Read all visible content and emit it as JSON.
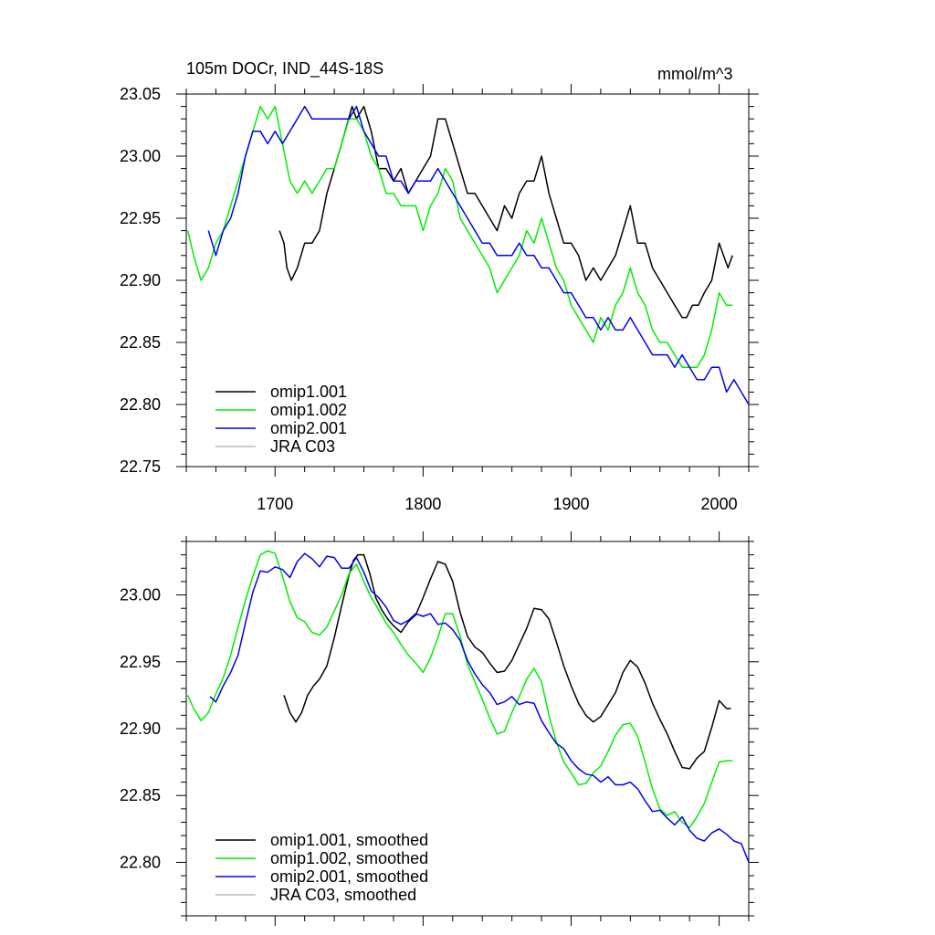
{
  "title_left": "105m DOCr, IND_44S-18S",
  "title_right": "mmol/m^3",
  "colors": {
    "omip1_001": "#000000",
    "omip1_002": "#00ee00",
    "omip2_001": "#0000ee",
    "jra": "#bbbbbb"
  },
  "chart_data": [
    {
      "type": "line",
      "title": "105m DOCr, IND_44S-18S",
      "units": "mmol/m^3",
      "xlim": [
        1640,
        2020
      ],
      "ylim": [
        22.75,
        23.05
      ],
      "x_ticks": [
        1700,
        1800,
        1900,
        2000
      ],
      "x_tick_labels": [
        "1700",
        "1800",
        "1900",
        "2000"
      ],
      "y_ticks": [
        22.75,
        22.8,
        22.85,
        22.9,
        22.95,
        23.0,
        23.05
      ],
      "y_tick_labels": [
        "22.75",
        "22.80",
        "22.85",
        "22.90",
        "22.95",
        "23.00",
        "23.05"
      ],
      "legend_position": "bottom-left",
      "legend": [
        "omip1.001",
        "omip1.002",
        "omip2.001",
        "JRA C03"
      ],
      "series": [
        {
          "name": "omip1.001",
          "color": "#000000",
          "x": [
            1703,
            1706,
            1708,
            1711,
            1715,
            1720,
            1725,
            1730,
            1735,
            1740,
            1745,
            1752,
            1755,
            1760,
            1765,
            1770,
            1775,
            1780,
            1785,
            1790,
            1795,
            1800,
            1805,
            1810,
            1815,
            1820,
            1825,
            1830,
            1835,
            1840,
            1845,
            1850,
            1855,
            1860,
            1865,
            1870,
            1875,
            1880,
            1885,
            1890,
            1895,
            1900,
            1905,
            1910,
            1915,
            1920,
            1925,
            1930,
            1935,
            1940,
            1945,
            1950,
            1955,
            1960,
            1965,
            1970,
            1975,
            1978,
            1982,
            1986,
            1990,
            1995,
            2000,
            2003,
            2006,
            2009
          ],
          "y": [
            22.94,
            22.93,
            22.91,
            22.9,
            22.91,
            22.93,
            22.93,
            22.94,
            22.97,
            22.99,
            23.01,
            23.04,
            23.03,
            23.04,
            23.02,
            22.99,
            22.99,
            22.98,
            22.99,
            22.97,
            22.98,
            22.99,
            23.0,
            23.03,
            23.03,
            23.01,
            22.99,
            22.97,
            22.97,
            22.96,
            22.95,
            22.94,
            22.96,
            22.95,
            22.97,
            22.98,
            22.98,
            23.0,
            22.97,
            22.95,
            22.93,
            22.93,
            22.92,
            22.9,
            22.91,
            22.9,
            22.91,
            22.92,
            22.94,
            22.96,
            22.93,
            22.93,
            22.91,
            22.9,
            22.89,
            22.88,
            22.87,
            22.87,
            22.88,
            22.88,
            22.89,
            22.9,
            22.93,
            22.92,
            22.91,
            22.92
          ]
        },
        {
          "name": "omip1.002",
          "color": "#00ee00",
          "x": [
            1641,
            1645,
            1650,
            1655,
            1660,
            1665,
            1670,
            1675,
            1680,
            1685,
            1690,
            1695,
            1700,
            1705,
            1710,
            1715,
            1720,
            1725,
            1730,
            1735,
            1740,
            1745,
            1750,
            1755,
            1760,
            1765,
            1770,
            1775,
            1780,
            1785,
            1790,
            1795,
            1800,
            1805,
            1810,
            1815,
            1820,
            1825,
            1830,
            1835,
            1840,
            1845,
            1850,
            1855,
            1860,
            1865,
            1870,
            1875,
            1880,
            1885,
            1890,
            1895,
            1900,
            1905,
            1910,
            1915,
            1920,
            1925,
            1930,
            1935,
            1940,
            1945,
            1950,
            1955,
            1960,
            1965,
            1970,
            1975,
            1980,
            1985,
            1990,
            1995,
            2000,
            2005,
            2009
          ],
          "y": [
            22.94,
            22.92,
            22.9,
            22.91,
            22.93,
            22.94,
            22.96,
            22.98,
            23.0,
            23.02,
            23.04,
            23.03,
            23.04,
            23.01,
            22.98,
            22.97,
            22.98,
            22.97,
            22.98,
            22.99,
            22.99,
            23.01,
            23.03,
            23.03,
            23.02,
            23.0,
            22.99,
            22.97,
            22.97,
            22.96,
            22.96,
            22.96,
            22.94,
            22.96,
            22.97,
            22.99,
            22.98,
            22.95,
            22.94,
            22.93,
            22.92,
            22.91,
            22.89,
            22.9,
            22.91,
            22.92,
            22.94,
            22.93,
            22.95,
            22.93,
            22.91,
            22.9,
            22.88,
            22.87,
            22.86,
            22.85,
            22.87,
            22.86,
            22.88,
            22.89,
            22.91,
            22.89,
            22.88,
            22.86,
            22.85,
            22.85,
            22.84,
            22.83,
            22.83,
            22.83,
            22.84,
            22.86,
            22.89,
            22.88,
            22.88
          ]
        },
        {
          "name": "omip2.001",
          "color": "#0000ee",
          "x": [
            1655,
            1660,
            1665,
            1670,
            1675,
            1680,
            1685,
            1690,
            1695,
            1700,
            1705,
            1710,
            1715,
            1720,
            1725,
            1730,
            1735,
            1740,
            1745,
            1750,
            1755,
            1760,
            1765,
            1770,
            1775,
            1780,
            1785,
            1790,
            1795,
            1800,
            1805,
            1810,
            1815,
            1820,
            1825,
            1830,
            1835,
            1840,
            1845,
            1850,
            1855,
            1860,
            1865,
            1870,
            1875,
            1880,
            1885,
            1890,
            1895,
            1900,
            1905,
            1910,
            1915,
            1920,
            1925,
            1930,
            1935,
            1940,
            1945,
            1950,
            1955,
            1960,
            1965,
            1970,
            1975,
            1980,
            1985,
            1990,
            1995,
            2000,
            2005,
            2010,
            2015,
            2020
          ],
          "y": [
            22.94,
            22.92,
            22.94,
            22.95,
            22.97,
            23.0,
            23.02,
            23.02,
            23.01,
            23.02,
            23.01,
            23.02,
            23.03,
            23.04,
            23.03,
            23.03,
            23.03,
            23.03,
            23.03,
            23.03,
            23.04,
            23.02,
            23.01,
            23.0,
            23.0,
            22.98,
            22.98,
            22.97,
            22.98,
            22.98,
            22.98,
            22.99,
            22.98,
            22.97,
            22.96,
            22.95,
            22.94,
            22.93,
            22.93,
            22.92,
            22.92,
            22.92,
            22.93,
            22.92,
            22.92,
            22.91,
            22.91,
            22.9,
            22.89,
            22.89,
            22.88,
            22.87,
            22.87,
            22.86,
            22.87,
            22.86,
            22.86,
            22.87,
            22.86,
            22.85,
            22.84,
            22.84,
            22.84,
            22.83,
            22.84,
            22.83,
            22.82,
            22.82,
            22.83,
            22.83,
            22.81,
            22.82,
            22.81,
            22.8
          ]
        }
      ]
    },
    {
      "type": "line",
      "xlim": [
        1640,
        2020
      ],
      "ylim": [
        22.76,
        23.04
      ],
      "x_ticks": [
        1700,
        1800,
        1900,
        2000
      ],
      "y_ticks": [
        22.8,
        22.85,
        22.9,
        22.95,
        23.0
      ],
      "y_tick_labels": [
        "22.80",
        "22.85",
        "22.90",
        "22.95",
        "23.00"
      ],
      "legend_position": "bottom-left",
      "legend": [
        "omip1.001, smoothed",
        "omip1.002, smoothed",
        "omip2.001, smoothed",
        "JRA C03, smoothed"
      ],
      "series": [
        {
          "name": "omip1.001, smoothed",
          "color": "#000000",
          "x": [
            1706,
            1710,
            1714,
            1718,
            1722,
            1726,
            1730,
            1735,
            1740,
            1745,
            1750,
            1753,
            1756,
            1760,
            1764,
            1768,
            1772,
            1776,
            1780,
            1785,
            1790,
            1795,
            1800,
            1805,
            1810,
            1815,
            1820,
            1825,
            1830,
            1835,
            1840,
            1845,
            1850,
            1855,
            1860,
            1865,
            1870,
            1875,
            1880,
            1885,
            1890,
            1895,
            1900,
            1905,
            1910,
            1915,
            1920,
            1925,
            1930,
            1935,
            1940,
            1945,
            1950,
            1955,
            1960,
            1965,
            1970,
            1975,
            1980,
            1985,
            1990,
            1995,
            2000,
            2005,
            2008
          ],
          "y": [
            22.925,
            22.912,
            22.905,
            22.912,
            22.925,
            22.932,
            22.937,
            22.947,
            22.968,
            22.992,
            23.015,
            23.026,
            23.03,
            23.03,
            23.016,
            22.998,
            22.989,
            22.982,
            22.977,
            22.972,
            22.98,
            22.985,
            22.998,
            23.012,
            23.025,
            23.023,
            23.01,
            22.987,
            22.969,
            22.961,
            22.957,
            22.949,
            22.942,
            22.943,
            22.951,
            22.963,
            22.975,
            22.99,
            22.989,
            22.982,
            22.965,
            22.947,
            22.932,
            22.919,
            22.91,
            22.905,
            22.909,
            22.918,
            22.927,
            22.942,
            22.951,
            22.946,
            22.934,
            22.919,
            22.907,
            22.896,
            22.883,
            22.871,
            22.87,
            22.878,
            22.883,
            22.901,
            22.921,
            22.915,
            22.915
          ]
        },
        {
          "name": "omip1.002, smoothed",
          "color": "#00ee00",
          "x": [
            1641,
            1645,
            1650,
            1655,
            1660,
            1665,
            1670,
            1675,
            1680,
            1685,
            1690,
            1695,
            1700,
            1705,
            1710,
            1715,
            1720,
            1725,
            1730,
            1735,
            1740,
            1745,
            1750,
            1755,
            1760,
            1765,
            1770,
            1775,
            1780,
            1785,
            1790,
            1795,
            1800,
            1805,
            1810,
            1815,
            1820,
            1825,
            1830,
            1835,
            1840,
            1845,
            1850,
            1855,
            1860,
            1865,
            1870,
            1875,
            1880,
            1885,
            1890,
            1895,
            1900,
            1905,
            1910,
            1915,
            1920,
            1925,
            1930,
            1935,
            1940,
            1945,
            1950,
            1955,
            1960,
            1965,
            1970,
            1975,
            1980,
            1985,
            1990,
            1995,
            2000,
            2005,
            2009
          ],
          "y": [
            22.925,
            22.915,
            22.906,
            22.912,
            22.926,
            22.938,
            22.955,
            22.976,
            22.996,
            23.014,
            23.03,
            23.033,
            23.031,
            23.014,
            22.995,
            22.983,
            22.98,
            22.972,
            22.97,
            22.976,
            22.988,
            23.0,
            23.016,
            23.023,
            23.01,
            22.998,
            22.989,
            22.979,
            22.972,
            22.963,
            22.955,
            22.949,
            22.942,
            22.953,
            22.968,
            22.986,
            22.986,
            22.969,
            22.948,
            22.935,
            22.922,
            22.908,
            22.896,
            22.898,
            22.912,
            22.924,
            22.937,
            22.945,
            22.935,
            22.91,
            22.89,
            22.875,
            22.867,
            22.858,
            22.859,
            22.867,
            22.872,
            22.883,
            22.895,
            22.903,
            22.904,
            22.894,
            22.875,
            22.855,
            22.84,
            22.835,
            22.838,
            22.83,
            22.826,
            22.834,
            22.844,
            22.86,
            22.875,
            22.876,
            22.876
          ]
        },
        {
          "name": "omip2.001, smoothed",
          "color": "#0000ee",
          "x": [
            1656,
            1660,
            1665,
            1670,
            1675,
            1680,
            1685,
            1690,
            1695,
            1700,
            1705,
            1710,
            1715,
            1720,
            1725,
            1730,
            1735,
            1740,
            1745,
            1750,
            1755,
            1760,
            1765,
            1770,
            1775,
            1780,
            1785,
            1790,
            1795,
            1800,
            1805,
            1810,
            1815,
            1820,
            1825,
            1830,
            1835,
            1840,
            1845,
            1850,
            1855,
            1860,
            1865,
            1870,
            1875,
            1880,
            1885,
            1890,
            1895,
            1900,
            1905,
            1910,
            1915,
            1920,
            1925,
            1930,
            1935,
            1940,
            1945,
            1950,
            1955,
            1960,
            1965,
            1970,
            1975,
            1980,
            1985,
            1990,
            1995,
            2000,
            2005,
            2010,
            2015,
            2020
          ],
          "y": [
            22.924,
            22.92,
            22.932,
            22.942,
            22.955,
            22.979,
            23.002,
            23.018,
            23.017,
            23.021,
            23.019,
            23.013,
            23.025,
            23.031,
            23.027,
            23.021,
            23.029,
            23.028,
            23.02,
            23.02,
            23.028,
            23.017,
            23.003,
            22.998,
            22.991,
            22.981,
            22.978,
            22.981,
            22.986,
            22.984,
            22.986,
            22.978,
            22.979,
            22.974,
            22.966,
            22.951,
            22.941,
            22.933,
            22.927,
            22.918,
            22.92,
            22.924,
            22.918,
            22.92,
            22.919,
            22.906,
            22.897,
            22.889,
            22.885,
            22.876,
            22.87,
            22.866,
            22.865,
            22.86,
            22.864,
            22.858,
            22.858,
            22.86,
            22.855,
            22.846,
            22.838,
            22.839,
            22.833,
            22.828,
            22.834,
            22.824,
            22.818,
            22.816,
            22.822,
            22.825,
            22.821,
            22.816,
            22.814,
            22.8
          ]
        }
      ]
    }
  ]
}
